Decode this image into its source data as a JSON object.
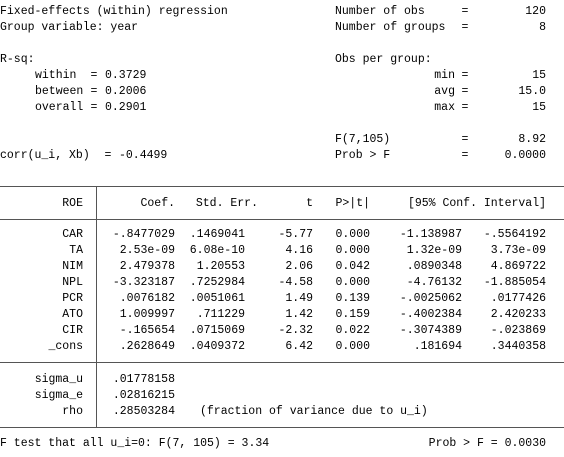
{
  "header": {
    "title": "Fixed-effects (within) regression",
    "group_variable": "Group variable: year",
    "number_of_obs": {
      "label": "Number of obs",
      "eq": "=",
      "value": "120"
    },
    "number_of_groups": {
      "label": "Number of groups",
      "eq": "=",
      "value": "8"
    },
    "r_sq_label": "R-sq:",
    "r_sq": [
      {
        "label": "within",
        "eq": "=",
        "value": "0.3729"
      },
      {
        "label": "between",
        "eq": "=",
        "value": "0.2006"
      },
      {
        "label": "overall",
        "eq": "=",
        "value": "0.2901"
      }
    ],
    "obs_per_group_label": "Obs per group:",
    "obs_per_group": [
      {
        "label": "min",
        "eq": "=",
        "value": "15"
      },
      {
        "label": "avg",
        "eq": "=",
        "value": "15.0"
      },
      {
        "label": "max",
        "eq": "=",
        "value": "15"
      }
    ],
    "f_stat": {
      "label": "F(7,105)",
      "eq": "=",
      "value": "8.92"
    },
    "corr": {
      "label": "corr(u_i, Xb)",
      "eq": "=",
      "value": "-0.4499"
    },
    "prob_f": {
      "label": "Prob > F",
      "eq": "=",
      "value": "0.0000"
    }
  },
  "table": {
    "depvar": "ROE",
    "columns": [
      "Coef.",
      "Std. Err.",
      "t",
      "P>|t|",
      "[95% Conf. Interval]"
    ],
    "rows": [
      {
        "name": "CAR",
        "values": [
          "-.8477029",
          ".1469041",
          "-5.77",
          "0.000",
          "-1.138987",
          "-.5564192"
        ]
      },
      {
        "name": "TA",
        "values": [
          "2.53e-09",
          "6.08e-10",
          "4.16",
          "0.000",
          "1.32e-09",
          "3.73e-09"
        ]
      },
      {
        "name": "NIM",
        "values": [
          "2.479378",
          "1.20553",
          "2.06",
          "0.042",
          ".0890348",
          "4.869722"
        ]
      },
      {
        "name": "NPL",
        "values": [
          "-3.323187",
          ".7252984",
          "-4.58",
          "0.000",
          "-4.76132",
          "-1.885054"
        ]
      },
      {
        "name": "PCR",
        "values": [
          ".0076182",
          ".0051061",
          "1.49",
          "0.139",
          "-.0025062",
          ".0177426"
        ]
      },
      {
        "name": "ATO",
        "values": [
          "1.009997",
          ".711229",
          "1.42",
          "0.159",
          "-.4002384",
          "2.420233"
        ]
      },
      {
        "name": "CIR",
        "values": [
          "-.165654",
          ".0715069",
          "-2.32",
          "0.022",
          "-.3074389",
          "-.023869"
        ]
      },
      {
        "name": "_cons",
        "values": [
          ".2628649",
          ".0409372",
          "6.42",
          "0.000",
          ".181694",
          ".3440358"
        ]
      }
    ],
    "sigma": [
      {
        "name": "sigma_u",
        "value": ".01778158"
      },
      {
        "name": "sigma_e",
        "value": ".02816215"
      },
      {
        "name": "rho",
        "value": ".28503284",
        "note": "(fraction of variance due to u_i)"
      }
    ]
  },
  "footer": {
    "f_test": "F test that all u_i=0: F(7, 105) = 3.34",
    "prob": "Prob > F = 0.0030"
  }
}
